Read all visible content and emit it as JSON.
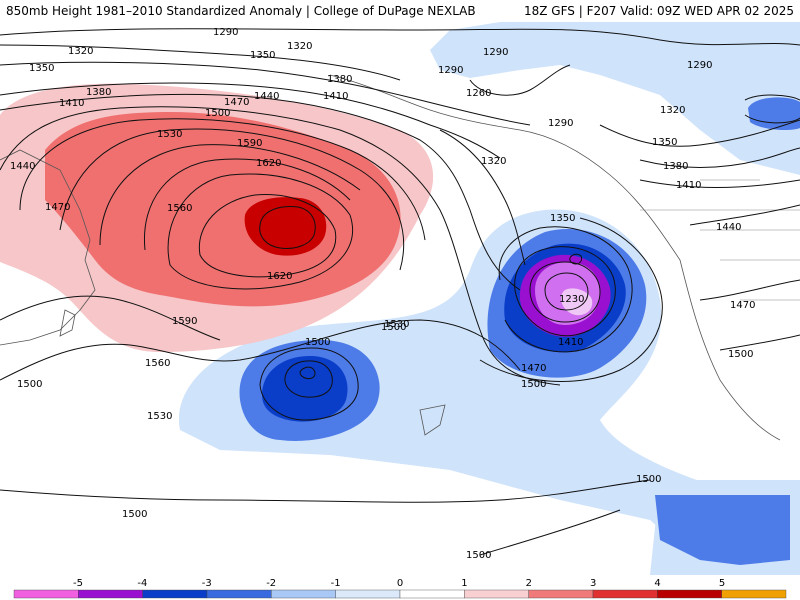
{
  "header": {
    "left_title": "850mb Height 1981–2010 Standardized Anomaly | College of DuPage NEXLAB",
    "right_title": "18Z GFS | F207 Valid: 09Z WED APR 02 2025"
  },
  "colors": {
    "anom_pos1": "#f6c6c8",
    "anom_pos2": "#f07070",
    "anom_pos3": "#c80000",
    "anom_neg1": "#cfe3fb",
    "anom_neg2": "#4d7be8",
    "anom_neg3": "#0a3ec9",
    "anom_neg4": "#7a0ad6",
    "anom_neg5": "#d070f0"
  },
  "contour_labels": [
    {
      "id": "h1290a",
      "text": "1290"
    },
    {
      "id": "h1290b",
      "text": "1290"
    },
    {
      "id": "h1290c",
      "text": "1290"
    },
    {
      "id": "h1290d",
      "text": "1290"
    },
    {
      "id": "h1290e",
      "text": "1290"
    },
    {
      "id": "h1260",
      "text": "1260"
    },
    {
      "id": "h1320a",
      "text": "1320"
    },
    {
      "id": "h1320b",
      "text": "1320"
    },
    {
      "id": "h1320c",
      "text": "1320"
    },
    {
      "id": "h1320d",
      "text": "1320"
    },
    {
      "id": "h1350a",
      "text": "1350"
    },
    {
      "id": "h1350b",
      "text": "1350"
    },
    {
      "id": "h1350c",
      "text": "1350"
    },
    {
      "id": "h1350d",
      "text": "1350"
    },
    {
      "id": "h1380a",
      "text": "1380"
    },
    {
      "id": "h1380b",
      "text": "1380"
    },
    {
      "id": "h1380c",
      "text": "1380"
    },
    {
      "id": "h1410a",
      "text": "1410"
    },
    {
      "id": "h1410b",
      "text": "1410"
    },
    {
      "id": "h1410c",
      "text": "1410"
    },
    {
      "id": "h1410d",
      "text": "1410"
    },
    {
      "id": "h1440a",
      "text": "1440"
    },
    {
      "id": "h1440b",
      "text": "1440"
    },
    {
      "id": "h1440c",
      "text": "1440"
    },
    {
      "id": "h1470a",
      "text": "1470"
    },
    {
      "id": "h1470b",
      "text": "1470"
    },
    {
      "id": "h1470c",
      "text": "1470"
    },
    {
      "id": "h1470d",
      "text": "1470"
    },
    {
      "id": "h1500a",
      "text": "1500"
    },
    {
      "id": "h1500b",
      "text": "1500"
    },
    {
      "id": "h1500c",
      "text": "1500"
    },
    {
      "id": "h1500d",
      "text": "1500"
    },
    {
      "id": "h1500e",
      "text": "1500"
    },
    {
      "id": "h1500f",
      "text": "1500"
    },
    {
      "id": "h1500g",
      "text": "1500"
    },
    {
      "id": "h1500h",
      "text": "1500"
    },
    {
      "id": "h1500i",
      "text": "1500"
    },
    {
      "id": "h1530a",
      "text": "1530"
    },
    {
      "id": "h1530b",
      "text": "1530"
    },
    {
      "id": "h1530c",
      "text": "1530"
    },
    {
      "id": "h1560a",
      "text": "1560"
    },
    {
      "id": "h1560b",
      "text": "1560"
    },
    {
      "id": "h1590a",
      "text": "1590"
    },
    {
      "id": "h1590b",
      "text": "1590"
    },
    {
      "id": "h1620a",
      "text": "1620"
    },
    {
      "id": "h1620b",
      "text": "1620"
    },
    {
      "id": "h1230",
      "text": "1230"
    }
  ],
  "colorbar": {
    "ticks": [
      "-5",
      "-4",
      "-3",
      "-2",
      "-1",
      "0",
      "1",
      "2",
      "3",
      "4",
      "5"
    ],
    "colors": [
      "#f060e0",
      "#9a10d0",
      "#0a3ec9",
      "#3a6ae0",
      "#a9c8f5",
      "#dbe9fb",
      "#ffffff",
      "#f8d0d2",
      "#f07a7a",
      "#e03030",
      "#b80000",
      "#f0a000"
    ]
  }
}
